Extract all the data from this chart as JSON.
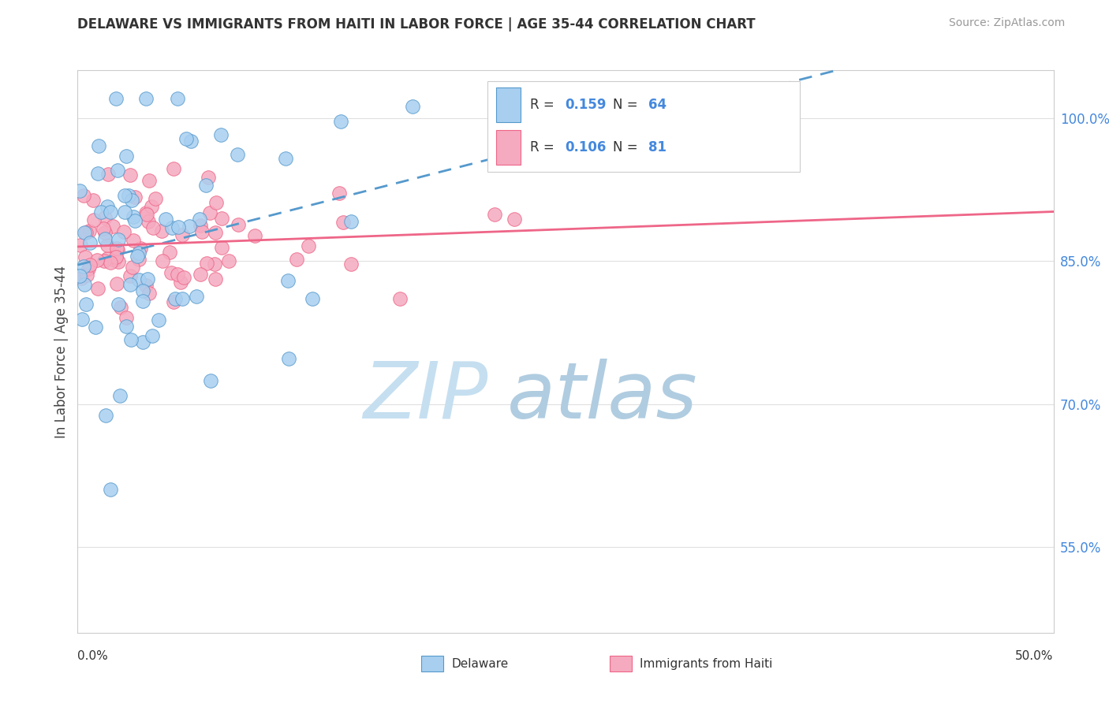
{
  "title": "DELAWARE VS IMMIGRANTS FROM HAITI IN LABOR FORCE | AGE 35-44 CORRELATION CHART",
  "source": "Source: ZipAtlas.com",
  "ylabel": "In Labor Force | Age 35-44",
  "xlim": [
    0.0,
    0.5
  ],
  "ylim": [
    0.46,
    1.05
  ],
  "legend_r1": "0.159",
  "legend_n1": "64",
  "legend_r2": "0.106",
  "legend_n2": "81",
  "series1_color": "#a8cff0",
  "series2_color": "#f5aac0",
  "trendline1_color": "#5599cc",
  "trendline2_color": "#ee6688",
  "watermark_zip_color": "#c5dff0",
  "watermark_atlas_color": "#b0cce0",
  "ytick_vals": [
    0.55,
    0.7,
    0.85,
    1.0
  ],
  "ytick_labels": [
    "55.0%",
    "70.0%",
    "85.0%",
    "100.0%"
  ]
}
